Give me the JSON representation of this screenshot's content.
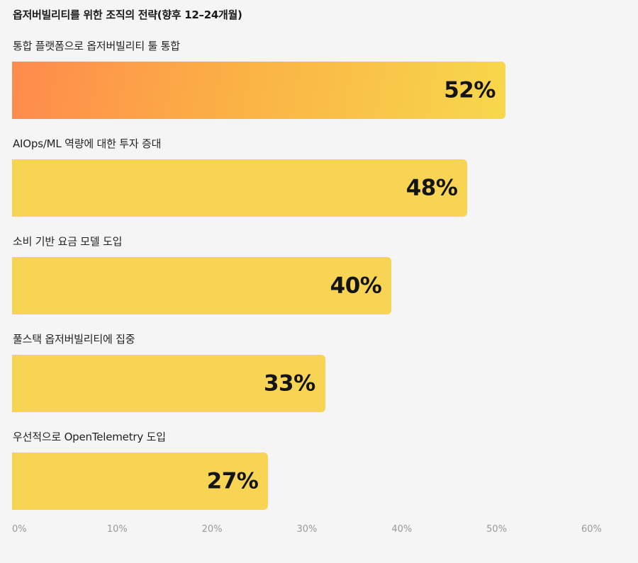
{
  "chart_data": {
    "type": "bar",
    "orientation": "horizontal",
    "title": "옵저버빌리티를 위한 조직의 전략(향후 12–24개월)",
    "categories": [
      "통합 플랫폼으로 옵저버빌리티 툴 통합",
      "AIOps/ML 역량에 대한 투자 증대",
      "소비 기반 요금 모델 도입",
      "풀스택 옵저버빌리티에 집중",
      "우선적으로 OpenTelemetry 도입"
    ],
    "values": [
      52,
      48,
      40,
      33,
      27
    ],
    "value_labels": [
      "52%",
      "48%",
      "40%",
      "33%",
      "27%"
    ],
    "xlim": [
      0,
      60
    ],
    "ticks": [
      0,
      10,
      20,
      30,
      40,
      50,
      60
    ],
    "tick_labels": [
      "0%",
      "10%",
      "20%",
      "30%",
      "40%",
      "50%",
      "60%"
    ],
    "grid": false,
    "colors": {
      "bar": "#f7d454",
      "highlight_start": "#ff8a4c",
      "highlight_end": "#f7d84c",
      "background": "#f5f5f5"
    }
  }
}
